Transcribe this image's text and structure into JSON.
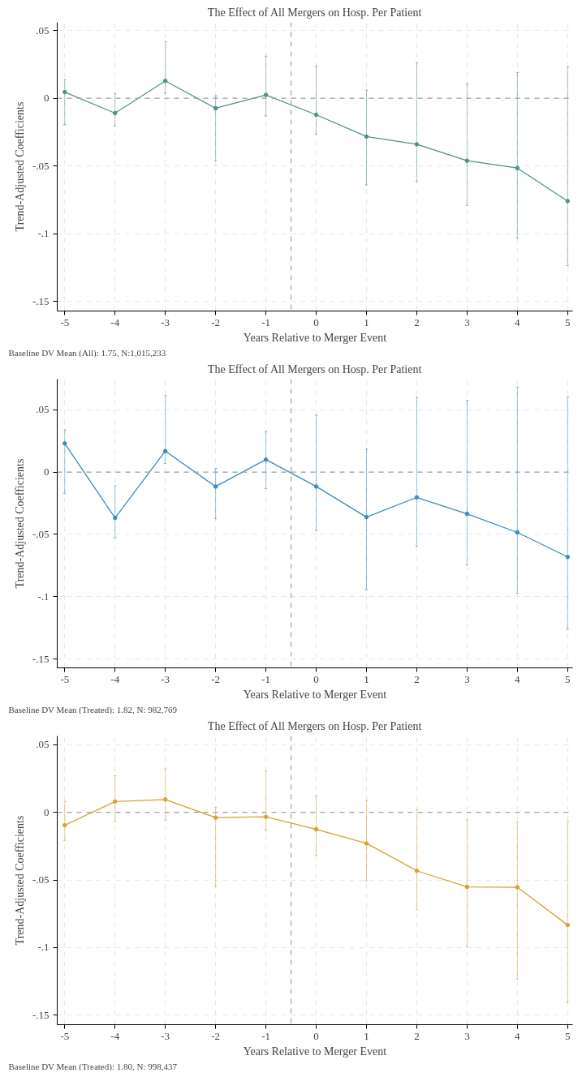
{
  "chart_data": [
    {
      "type": "line",
      "title": "The Effect of All Mergers on Hosp. Per Patient",
      "xlabel": "Years Relative to Merger Event",
      "ylabel": "Trend-Adjusted Coefficients",
      "annotations": [
        "Baseline DV Mean (All):  1.75,  N:1,015,233"
      ],
      "x": [
        -5,
        -4,
        -3,
        -2,
        -1,
        0,
        1,
        2,
        3,
        4,
        5
      ],
      "series": [
        {
          "color": "#4f928a",
          "values": [
            0.0045,
            -0.011,
            0.0128,
            -0.0074,
            0.0024,
            -0.0122,
            -0.0283,
            -0.034,
            -0.0461,
            -0.0515,
            -0.0759
          ],
          "errors": [
            [
              -0.0196,
              0.0137
            ],
            [
              -0.0205,
              0.0033
            ],
            [
              0.0036,
              0.0417
            ],
            [
              -0.046,
              0.0018
            ],
            [
              -0.0131,
              0.031
            ],
            [
              -0.0265,
              0.0235
            ],
            [
              -0.064,
              0.006
            ],
            [
              -0.0613,
              0.0262
            ],
            [
              -0.0792,
              0.0107
            ],
            [
              -0.1033,
              0.019
            ],
            [
              -0.1235,
              0.023
            ]
          ]
        }
      ],
      "xlim": [
        -5.15,
        5.1
      ],
      "xticks": [
        -5,
        -4,
        -3,
        -2,
        -1,
        0,
        1,
        2,
        3,
        4,
        5
      ],
      "ylim": [
        -0.157,
        0.056
      ],
      "yticks": [
        {
          "value": -0.15,
          "label": "-.15"
        },
        {
          "value": -0.1,
          "label": "-.1"
        },
        {
          "value": -0.05,
          "label": "-.05"
        },
        0,
        {
          "value": 0.05,
          "label": ".05"
        }
      ],
      "ref_lines": [
        {
          "axis": "y",
          "value": 0,
          "color": "#a0a0a0",
          "line_style": "dashed"
        },
        {
          "axis": "x",
          "value": -0.5,
          "color": "#a0a0a0",
          "line_style": "dashed"
        }
      ],
      "grid": true,
      "marker": "circle",
      "line_style": "solid"
    },
    {
      "type": "line",
      "title": "The Effect of All Mergers on Hosp. Per Patient",
      "xlabel": "Years Relative to Merger Event",
      "ylabel": "Trend-Adjusted Coefficients",
      "annotations": [
        "Baseline DV Mean (Treated):  1.82,  N:  982,769"
      ],
      "x": [
        -5,
        -4,
        -3,
        -2,
        -1,
        0,
        1,
        2,
        3,
        4,
        5
      ],
      "series": [
        {
          "color": "#3a8dbf",
          "values": [
            0.0229,
            -0.0368,
            0.0168,
            -0.0116,
            0.01,
            -0.0116,
            -0.0361,
            -0.0203,
            -0.0335,
            -0.0484,
            -0.0681
          ],
          "errors": [
            [
              -0.0171,
              0.0339
            ],
            [
              -0.0526,
              -0.011
            ],
            [
              0.0068,
              0.0613
            ],
            [
              -0.0374,
              0.0029
            ],
            [
              -0.0132,
              0.0323
            ],
            [
              -0.0468,
              0.0455
            ],
            [
              -0.0942,
              0.0184
            ],
            [
              -0.0594,
              0.06
            ],
            [
              -0.0745,
              0.0574
            ],
            [
              -0.0974,
              0.0681
            ],
            [
              -0.1261,
              0.0603
            ]
          ]
        }
      ],
      "xlim": [
        -5.15,
        5.1
      ],
      "xticks": [
        -5,
        -4,
        -3,
        -2,
        -1,
        0,
        1,
        2,
        3,
        4,
        5
      ],
      "ylim": [
        -0.157,
        0.0745
      ],
      "yticks": [
        {
          "value": -0.15,
          "label": "-.15"
        },
        {
          "value": -0.1,
          "label": "-.1"
        },
        {
          "value": -0.05,
          "label": "-.05"
        },
        0,
        {
          "value": 0.05,
          "label": ".05"
        }
      ],
      "ref_lines": [
        {
          "axis": "y",
          "value": 0,
          "color": "#a0a0a0",
          "line_style": "dashed"
        },
        {
          "axis": "x",
          "value": -0.5,
          "color": "#a0a0a0",
          "line_style": "dashed"
        }
      ],
      "grid": true,
      "marker": "circle",
      "line_style": "solid"
    },
    {
      "type": "line",
      "title": "The Effect of All Mergers on Hosp. Per Patient",
      "xlabel": "Years Relative to Merger Event",
      "ylabel": "Trend-Adjusted Coefficients",
      "annotations": [
        "Baseline DV Mean (Treated):  1.80,  N:  998,437"
      ],
      "x": [
        -5,
        -4,
        -3,
        -2,
        -1,
        0,
        1,
        2,
        3,
        4,
        5
      ],
      "series": [
        {
          "color": "#d4a431",
          "values": [
            -0.0095,
            0.008,
            0.0095,
            -0.0039,
            -0.0033,
            -0.0125,
            -0.0229,
            -0.0432,
            -0.0551,
            -0.0554,
            -0.0833
          ],
          "errors": [
            [
              -0.0208,
              0.008
            ],
            [
              -0.0068,
              0.0271
            ],
            [
              -0.0057,
              0.0321
            ],
            [
              -0.0548,
              0.0036
            ],
            [
              -0.0134,
              0.0304
            ],
            [
              -0.0318,
              0.0125
            ],
            [
              -0.0506,
              0.0086
            ],
            [
              -0.072,
              0.0021
            ],
            [
              -0.0991,
              -0.0057
            ],
            [
              -0.1232,
              -0.0071
            ],
            [
              -0.1405,
              -0.0068
            ]
          ]
        }
      ],
      "xlim": [
        -5.15,
        5.1
      ],
      "xticks": [
        -5,
        -4,
        -3,
        -2,
        -1,
        0,
        1,
        2,
        3,
        4,
        5
      ],
      "ylim": [
        -0.157,
        0.0565
      ],
      "yticks": [
        {
          "value": -0.15,
          "label": "-.15"
        },
        {
          "value": -0.1,
          "label": "-.1"
        },
        {
          "value": -0.05,
          "label": "-.05"
        },
        0,
        {
          "value": 0.05,
          "label": ".05"
        }
      ],
      "ref_lines": [
        {
          "axis": "y",
          "value": 0,
          "color": "#a0a0a0",
          "line_style": "dashed"
        },
        {
          "axis": "x",
          "value": -0.5,
          "color": "#a0a0a0",
          "line_style": "dashed"
        }
      ],
      "grid": true,
      "marker": "circle",
      "line_style": "solid"
    }
  ]
}
